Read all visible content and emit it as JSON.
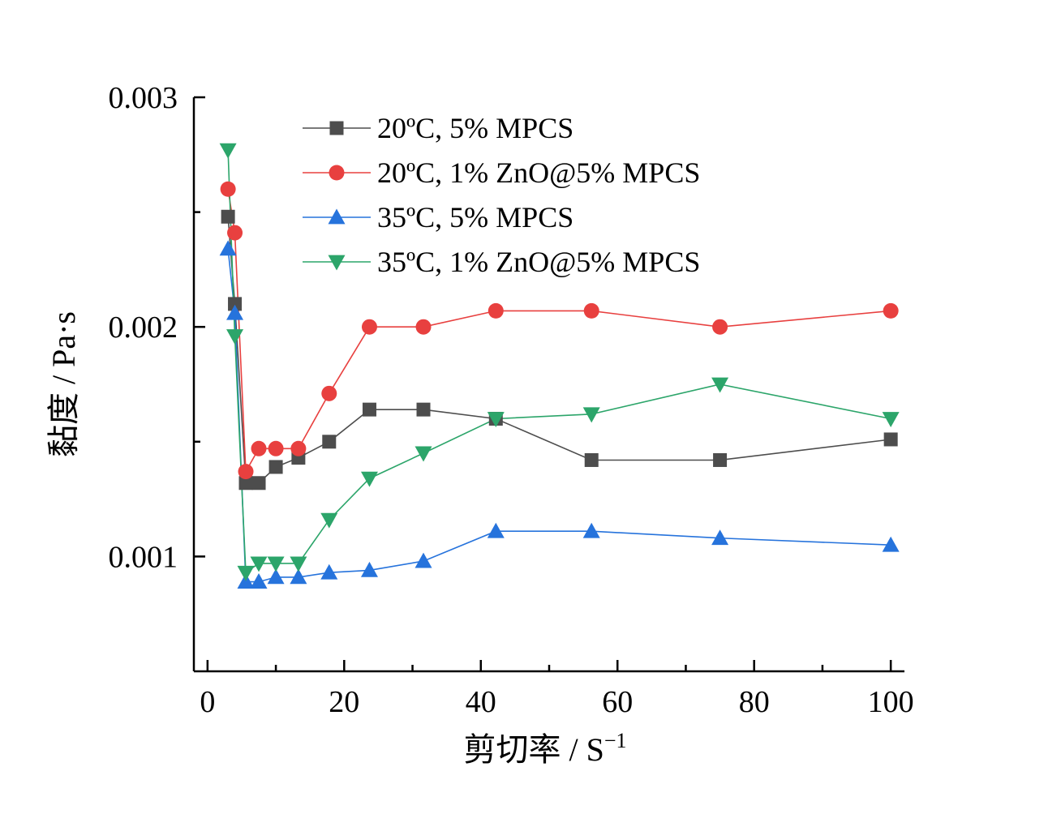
{
  "chart_data": {
    "type": "line",
    "xlabel": "剪切率 / S",
    "xlabel_sup": "−1",
    "ylabel": "黏度 / Pa·s",
    "xlim": [
      -2,
      102
    ],
    "ylim": [
      0.0005,
      0.003
    ],
    "xticks": [
      0,
      20,
      40,
      60,
      80,
      100
    ],
    "xtick_labels": [
      "0",
      "20",
      "40",
      "60",
      "80",
      "100"
    ],
    "yticks": [
      0.001,
      0.002,
      0.003
    ],
    "ytick_labels": [
      "0.001",
      "0.002",
      "0.003"
    ],
    "grid": false,
    "legend_position": "top-right",
    "series": [
      {
        "name": "20ºC, 5% MPCS",
        "color": "#4d4d4d",
        "marker": "square",
        "x": [
          3,
          4,
          5.6,
          7.5,
          10,
          13.3,
          17.8,
          23.7,
          31.6,
          42.2,
          56.2,
          75,
          100
        ],
        "y": [
          0.00248,
          0.0021,
          0.00132,
          0.00132,
          0.00139,
          0.00143,
          0.0015,
          0.00164,
          0.00164,
          0.0016,
          0.00142,
          0.00142,
          0.00151
        ]
      },
      {
        "name": "20ºC, 1% ZnO@5% MPCS",
        "color": "#e8403f",
        "marker": "circle",
        "x": [
          3,
          4,
          5.6,
          7.5,
          10,
          13.3,
          17.8,
          23.7,
          31.6,
          42.2,
          56.2,
          75,
          100
        ],
        "y": [
          0.0026,
          0.00241,
          0.00137,
          0.00147,
          0.00147,
          0.00147,
          0.00171,
          0.002,
          0.002,
          0.00207,
          0.00207,
          0.002,
          0.00207
        ]
      },
      {
        "name": "35ºC, 5% MPCS",
        "color": "#2673dc",
        "marker": "triangle-up",
        "x": [
          3,
          4,
          5.6,
          7.5,
          10,
          13.3,
          17.8,
          23.7,
          31.6,
          42.2,
          56.2,
          75,
          100
        ],
        "y": [
          0.00234,
          0.00206,
          0.00089,
          0.00089,
          0.00091,
          0.00091,
          0.00093,
          0.00094,
          0.00098,
          0.00111,
          0.00111,
          0.00108,
          0.00105
        ]
      },
      {
        "name": "35ºC, 1% ZnO@5% MPCS",
        "color": "#2ca56a",
        "marker": "triangle-down",
        "x": [
          3,
          4,
          5.6,
          7.5,
          10,
          13.3,
          17.8,
          23.7,
          31.6,
          42.2,
          56.2,
          75,
          100
        ],
        "y": [
          0.00277,
          0.00196,
          0.00093,
          0.00097,
          0.00097,
          0.00097,
          0.00116,
          0.00134,
          0.00145,
          0.0016,
          0.00162,
          0.00175,
          0.0016
        ]
      }
    ]
  }
}
